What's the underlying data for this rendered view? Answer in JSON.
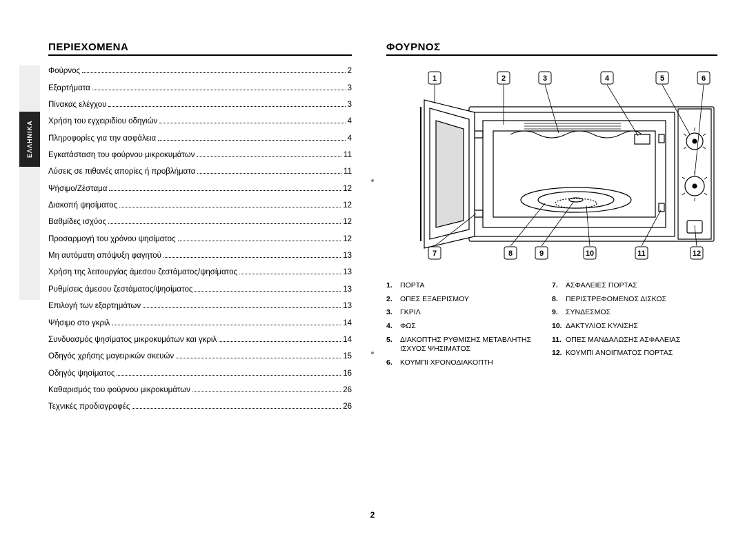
{
  "pageNumber": "2",
  "sideTab": "ΕΛΛΗΝΙΚΑ",
  "left": {
    "heading": "ΠΕΡΙΕΧΟΜΕΝΑ",
    "toc": [
      {
        "label": "Φούρνος",
        "page": "2"
      },
      {
        "label": "Εξαρτήματα",
        "page": "3"
      },
      {
        "label": "Πίνακας ελέγχου",
        "page": "3"
      },
      {
        "label": "Χρήση του εγχειριδίου οδηγιών",
        "page": "4"
      },
      {
        "label": "Πληροφορίες για την ασφάλεια",
        "page": "4"
      },
      {
        "label": "Εγκατάσταση του φούρνου μικροκυμάτων",
        "page": "11"
      },
      {
        "label": "Λύσεις σε πιθανές απορίες ή προβλήματα",
        "page": "11"
      },
      {
        "label": "Ψήσιμο/Ζέσταμα",
        "page": "12"
      },
      {
        "label": "Διακοπή ψησίματος",
        "page": "12"
      },
      {
        "label": "Βαθμίδες ισχύος",
        "page": "12"
      },
      {
        "label": "Προσαρμογή του χρόνου ψησίματος",
        "page": "12"
      },
      {
        "label": "Μη αυτόματη απόψυξη φαγητού",
        "page": "13"
      },
      {
        "label": "Χρήση της λειτουργίας άμεσου ζεστάματος/ψησίματος",
        "page": "13"
      },
      {
        "label": "Ρυθμίσεις άμεσου ζεστάματος/ψησίματος",
        "page": "13"
      },
      {
        "label": "Επιλογή των εξαρτημάτων",
        "page": "13"
      },
      {
        "label": "Ψήσιμο στο γκριλ",
        "page": "14"
      },
      {
        "label": "Συνδυασμός ψησίματος μικροκυμάτων και γκριλ",
        "page": "14"
      },
      {
        "label": "Οδηγός χρήσης μαγειρικών σκευών",
        "page": "15"
      },
      {
        "label": "Οδηγός ψησίματος",
        "page": "16"
      },
      {
        "label": "Καθαρισμός του φούρνου μικροκυμάτων",
        "page": "26"
      },
      {
        "label": "Τεχνικές προδιαγραφές",
        "page": "26"
      }
    ]
  },
  "right": {
    "heading": "ΦΟΥΡΝΟΣ",
    "callouts_top": [
      "1",
      "2",
      "3",
      "4",
      "5",
      "6"
    ],
    "callouts_bottom": [
      "7",
      "8",
      "9",
      "10",
      "11",
      "12"
    ],
    "legend_left": [
      {
        "num": "1.",
        "text": "ΠΟΡΤΑ"
      },
      {
        "num": "2.",
        "text": "ΟΠΕΣ ΕΞΑΕΡΙΣΜΟΥ"
      },
      {
        "num": "3.",
        "text": "ΓΚΡΙΛ"
      },
      {
        "num": "4.",
        "text": "ΦΩΣ"
      },
      {
        "num": "5.",
        "text": "ΔΙΑΚΟΠΤΗΣ ΡΥΘΜΙΣΗΣ ΜΕΤΑΒΛΗΤΗΣ ΙΣΧΥΟΣ ΨΗΣΙΜΑΤΟΣ"
      },
      {
        "num": "6.",
        "text": "ΚΟΥΜΠΙ ΧΡΟΝΟΔΙΑΚΟΠΤΗ"
      }
    ],
    "legend_right": [
      {
        "num": "7.",
        "text": "ΑΣΦΑΛΕΙΕΣ ΠΟΡΤΑΣ"
      },
      {
        "num": "8.",
        "text": "ΠΕΡΙΣΤΡΕΦΟΜΕΝΟΣ ΔΙΣΚΟΣ"
      },
      {
        "num": "9.",
        "text": "ΣΥΝΔΕΣΜΟΣ"
      },
      {
        "num": "10.",
        "text": "ΔΑΚΤΥΛΙΟΣ ΚΥΛΙΣΗΣ"
      },
      {
        "num": "11.",
        "text": "ΟΠΕΣ ΜΑΝΔΑΛΩΣΗΣ ΑΣΦΑΛΕΙΑΣ"
      },
      {
        "num": "12.",
        "text": "ΚΟΥΜΠΙ ΑΝΟΙΓΜΑΤΟΣ ΠΟΡΤΑΣ"
      }
    ]
  },
  "diagram": {
    "callout_top_x": [
      70,
      170,
      230,
      320,
      400,
      460
    ],
    "callout_bottom_x": [
      70,
      180,
      225,
      295,
      370,
      450
    ]
  }
}
